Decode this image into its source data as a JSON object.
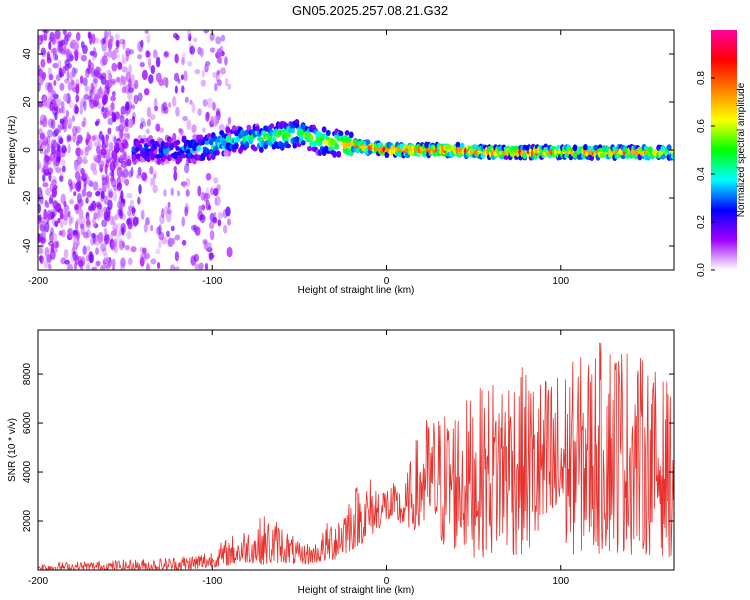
{
  "figure": {
    "title": "GN05.2025.257.08.21.G32"
  },
  "chart_data": [
    {
      "type": "heatmap",
      "title": "GN05.2025.257.08.21.G32",
      "xlabel": "Height of straight line (km)",
      "ylabel": "Frequency (Hz)",
      "xlim": [
        -200,
        165
      ],
      "ylim": [
        -50,
        50
      ],
      "xticks": [
        -200,
        -100,
        0,
        100
      ],
      "yticks": [
        -40,
        -20,
        0,
        20,
        40
      ],
      "colorbar": {
        "label": "Normalized spectral amplitude",
        "range": [
          0,
          1
        ],
        "ticks": [
          0.0,
          0.2,
          0.4,
          0.6,
          0.8
        ],
        "tick_labels": [
          "0.0",
          "0.2",
          "0.4",
          "0.6",
          "0.8"
        ],
        "colormap": [
          "#ffffff",
          "#a000ff",
          "#0000ff",
          "#00ffff",
          "#00ff00",
          "#ffff00",
          "#ff8000",
          "#ff0000",
          "#ff00a0"
        ]
      },
      "ridge": {
        "x": [
          -140,
          -120,
          -110,
          -100,
          -90,
          -80,
          -70,
          -60,
          -50,
          -40,
          -30,
          -20,
          -10,
          0,
          20,
          40,
          60,
          80,
          100,
          120,
          140,
          165
        ],
        "frequency": [
          0,
          0,
          0,
          2,
          4,
          5,
          5,
          6,
          7,
          4,
          3,
          2,
          1,
          0,
          0,
          0,
          -1,
          -1,
          -1,
          -1,
          -1,
          -1
        ],
        "amplitude": [
          0.25,
          0.3,
          0.35,
          0.45,
          0.4,
          0.45,
          0.5,
          0.55,
          0.5,
          0.55,
          0.6,
          0.75,
          0.8,
          0.85,
          0.85,
          0.85,
          0.8,
          0.8,
          0.75,
          0.8,
          0.75,
          0.7
        ]
      },
      "grid": false
    },
    {
      "type": "line",
      "xlabel": "Height of straight line (km)",
      "ylabel": "SNR (10 * v/v)",
      "xlim": [
        -200,
        165
      ],
      "ylim": [
        0,
        9800
      ],
      "xticks": [
        -200,
        -100,
        0,
        100
      ],
      "yticks": [
        2000,
        4000,
        6000,
        8000
      ],
      "series": [
        {
          "color": "#e8302c",
          "envelope_x": [
            -200,
            -160,
            -130,
            -110,
            -100,
            -90,
            -80,
            -70,
            -60,
            -50,
            -40,
            -30,
            -20,
            -10,
            0,
            10,
            20,
            30,
            50,
            70,
            90,
            110,
            130,
            150,
            165
          ],
          "envelope_min": [
            0,
            0,
            0,
            0,
            100,
            200,
            300,
            200,
            300,
            200,
            300,
            400,
            800,
            1300,
            2000,
            1800,
            1500,
            800,
            500,
            500,
            500,
            600,
            600,
            600,
            500
          ],
          "envelope_max": [
            300,
            400,
            500,
            700,
            900,
            1400,
            1800,
            2300,
            2000,
            1100,
            1200,
            2500,
            3500,
            3900,
            3600,
            3500,
            6200,
            6500,
            7200,
            8500,
            8000,
            8700,
            9800,
            8500,
            7500
          ]
        }
      ],
      "grid": false
    }
  ]
}
